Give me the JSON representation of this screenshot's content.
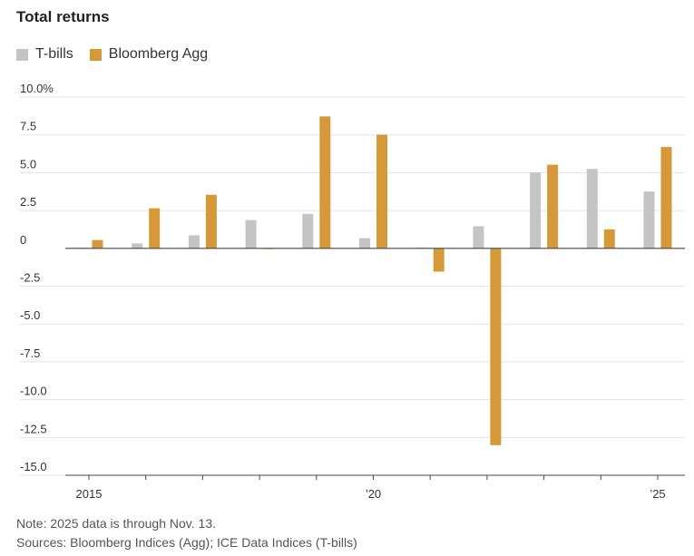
{
  "title": "Total returns",
  "note": "Note: 2025 data is through Nov. 13.",
  "sources": "Sources: Bloomberg Indices (Agg); ICE Data Indices (T-bills)",
  "chart_data": {
    "type": "bar",
    "title": "Total returns",
    "categories": [
      "2015",
      "2016",
      "2017",
      "2018",
      "2019",
      "2020",
      "2021",
      "2022",
      "2023",
      "2024",
      "2025"
    ],
    "x_tick_labels": [
      {
        "category": "2015",
        "label": "2015"
      },
      {
        "category": "2020",
        "label": "’20"
      },
      {
        "category": "2025",
        "label": "’25"
      }
    ],
    "series": [
      {
        "name": "T-bills",
        "color": "#c4c4c4",
        "values": [
          0.05,
          0.33,
          0.86,
          1.87,
          2.28,
          0.67,
          0.05,
          1.46,
          5.01,
          5.25,
          3.75
        ]
      },
      {
        "name": "Bloomberg Agg",
        "color": "#d6993a",
        "values": [
          0.55,
          2.65,
          3.54,
          0.01,
          8.72,
          7.51,
          -1.54,
          -13.01,
          5.53,
          1.25,
          6.7
        ]
      }
    ],
    "y_ticks": [
      {
        "value": 10,
        "label": "10.0%"
      },
      {
        "value": 7.5,
        "label": "7.5"
      },
      {
        "value": 5,
        "label": "5.0"
      },
      {
        "value": 2.5,
        "label": "2.5"
      },
      {
        "value": 0,
        "label": "0"
      },
      {
        "value": -2.5,
        "label": "-2.5"
      },
      {
        "value": -5,
        "label": "-5.0"
      },
      {
        "value": -7.5,
        "label": "-7.5"
      },
      {
        "value": -10,
        "label": "-10.0"
      },
      {
        "value": -12.5,
        "label": "-12.5"
      },
      {
        "value": -15,
        "label": "-15.0"
      }
    ],
    "ylim": [
      -15,
      10
    ],
    "grid": true,
    "legend_position": "top-left"
  }
}
